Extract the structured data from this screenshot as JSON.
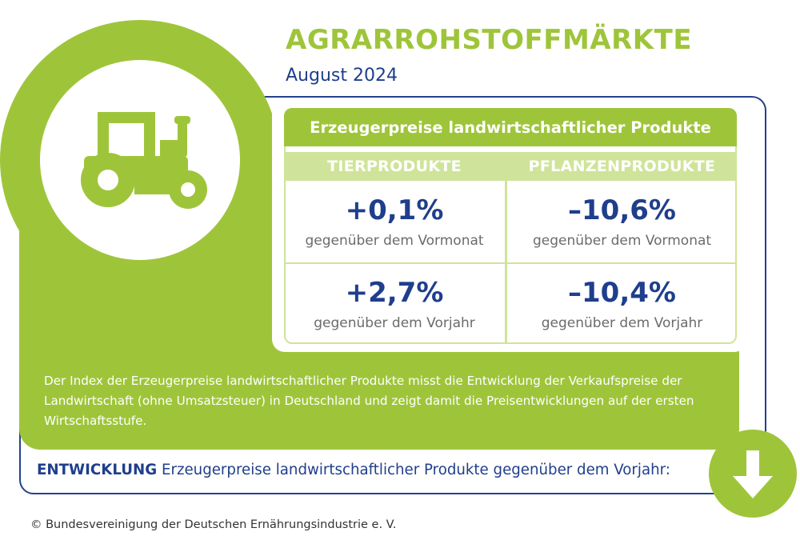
{
  "header": {
    "title": "AGRARROHSTOFFMÄRKTE",
    "subtitle": "August 2024"
  },
  "icon": "tractor-icon",
  "table": {
    "title": "Erzeugerpreise landwirtschaftlicher Produkte",
    "columns": [
      "TIERPRODUKTE",
      "PFLANZENPRODUKTE"
    ],
    "rows": [
      {
        "label": "gegenüber dem Vormonat",
        "values": [
          "+0,1%",
          "–10,6%"
        ]
      },
      {
        "label": "gegenüber dem Vorjahr",
        "values": [
          "+2,7%",
          "–10,4%"
        ]
      }
    ]
  },
  "description": "Der Index der Erzeugerpreise landwirtschaftlicher Produkte misst die Entwicklung der Verkaufspreise der Landwirtschaft (ohne Umsatzsteuer) in Deutschland und zeigt damit die Preisentwicklungen auf der ersten Wirtschaftsstufe.",
  "footer": {
    "entwicklung_bold": "ENTWICKLUNG",
    "entwicklung_text": " Erzeugerpreise landwirtschaftlicher Produkte gegenüber dem Vorjahr:",
    "arrow_icon": "arrow-down-icon",
    "copyright": "© Bundesvereinigung der Deutschen Ernährungsindustrie e. V."
  },
  "colors": {
    "green": "#9ec53a",
    "light_green": "#cfe49a",
    "navy": "#1f3e8c"
  }
}
